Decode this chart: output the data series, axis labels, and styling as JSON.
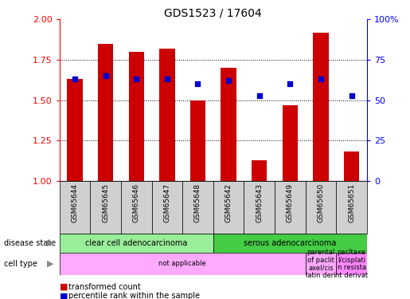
{
  "title": "GDS1523 / 17604",
  "samples": [
    "GSM65644",
    "GSM65645",
    "GSM65646",
    "GSM65647",
    "GSM65648",
    "GSM65642",
    "GSM65643",
    "GSM65649",
    "GSM65650",
    "GSM65651"
  ],
  "transformed_count": [
    1.63,
    1.85,
    1.8,
    1.82,
    1.5,
    1.7,
    1.13,
    1.47,
    1.92,
    1.18
  ],
  "percentile_rank": [
    63,
    65,
    63,
    63,
    60,
    62,
    53,
    60,
    63,
    53
  ],
  "ylim": [
    1.0,
    2.0
  ],
  "yticks_left": [
    1.0,
    1.25,
    1.5,
    1.75,
    2.0
  ],
  "yticks_right": [
    0,
    25,
    50,
    75,
    100
  ],
  "bar_color": "#cc0000",
  "dot_color": "#0000cc",
  "disease_state": [
    {
      "label": "clear cell adenocarcinoma",
      "start": 0,
      "end": 5,
      "color": "#99ee99"
    },
    {
      "label": "serous adenocarcinoma",
      "start": 5,
      "end": 10,
      "color": "#44cc44"
    }
  ],
  "cell_type": [
    {
      "label": "not applicable",
      "start": 0,
      "end": 8,
      "color": "#ffaaff"
    },
    {
      "label": "parental\nof paclit\naxel/cis\nlatin deri",
      "start": 8,
      "end": 9,
      "color": "#ffaaff"
    },
    {
      "label": "pacltaxe\nl/cisplati\nn resista\nnt derivat",
      "start": 9,
      "end": 10,
      "color": "#ff88ff"
    }
  ],
  "grid_yticks": [
    1.25,
    1.5,
    1.75
  ],
  "bar_width": 0.5,
  "dot_size": 20,
  "left_label_color": "#888888",
  "sample_bg_color": "#d0d0d0"
}
